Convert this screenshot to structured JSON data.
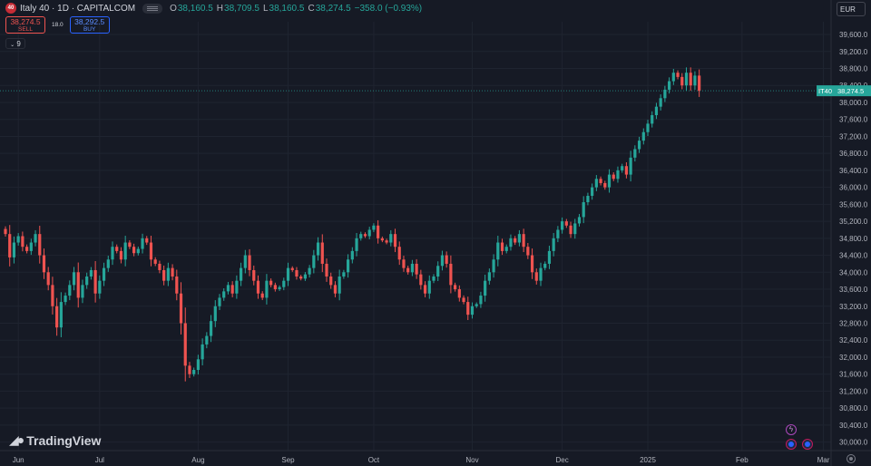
{
  "header": {
    "symbol_badge": "40",
    "title": "Italy 40 · 1D · CAPITALCOM",
    "ohlc": [
      {
        "key": "O",
        "value": "38,160.5"
      },
      {
        "key": "H",
        "value": "38,709.5"
      },
      {
        "key": "L",
        "value": "38,160.5"
      },
      {
        "key": "C",
        "value": "38,274.5"
      }
    ],
    "change": "−358.0 (−0.93%)"
  },
  "trade": {
    "sell_price": "38,274.5",
    "sell_label": "SELL",
    "spread": "18.0",
    "buy_price": "38,292.5",
    "buy_label": "BUY"
  },
  "indicator_toggle": "9",
  "currency": "EUR",
  "price_tag": {
    "ticker": "IT40",
    "price": "38,274.5"
  },
  "brand": "TradingView",
  "colors": {
    "up": "#26a69a",
    "down": "#ef5350",
    "background": "#161a25",
    "grid": "#1f2430",
    "text": "#b2b5be"
  },
  "icons": [
    "lightning-icon",
    "event-icon",
    "event-icon",
    "settings-icon"
  ],
  "chart_data": {
    "type": "candlestick",
    "timeframe": "1D",
    "y_axis_labels": [
      "30,000.0",
      "30,400.0",
      "30,800.0",
      "31,200.0",
      "31,600.0",
      "32,000.0",
      "32,400.0",
      "32,800.0",
      "33,200.0",
      "33,600.0",
      "34,000.0",
      "34,400.0",
      "34,800.0",
      "35,200.0",
      "35,600.0",
      "36,000.0",
      "36,400.0",
      "36,800.0",
      "37,200.0",
      "37,600.0",
      "38,000.0",
      "38,400.0",
      "38,800.0",
      "39,200.0",
      "39,600.0"
    ],
    "ylim": [
      29800,
      39900
    ],
    "x_axis_labels": [
      {
        "label": "Jun",
        "index": 3
      },
      {
        "label": "Jul",
        "index": 22
      },
      {
        "label": "Aug",
        "index": 45
      },
      {
        "label": "Sep",
        "index": 66
      },
      {
        "label": "Oct",
        "index": 86
      },
      {
        "label": "Nov",
        "index": 109
      },
      {
        "label": "Dec",
        "index": 130
      },
      {
        "label": "2025",
        "index": 150
      },
      {
        "label": "Feb",
        "index": 172
      },
      {
        "label": "Mar",
        "index": 191
      }
    ],
    "last_price": 38274.5,
    "closes": [
      34900,
      34350,
      34700,
      34850,
      34600,
      34500,
      34700,
      34900,
      34400,
      34000,
      33700,
      33200,
      32700,
      33300,
      33450,
      33700,
      34000,
      33400,
      33700,
      33900,
      34050,
      33500,
      33800,
      34100,
      34300,
      34600,
      34500,
      34300,
      34700,
      34600,
      34450,
      34550,
      34800,
      34700,
      34300,
      34200,
      34050,
      33800,
      34100,
      33900,
      33500,
      32800,
      31800,
      31600,
      31700,
      31950,
      32300,
      32500,
      32850,
      33200,
      33400,
      33550,
      33700,
      33500,
      33800,
      34100,
      34400,
      34050,
      33800,
      33500,
      33400,
      33800,
      33700,
      33600,
      33650,
      33800,
      34100,
      34050,
      33900,
      33850,
      33950,
      34100,
      34400,
      34700,
      34200,
      33900,
      33700,
      33500,
      33900,
      34000,
      34300,
      34500,
      34800,
      34900,
      34850,
      35000,
      35100,
      34800,
      34750,
      34700,
      34900,
      34600,
      34300,
      34100,
      34000,
      34200,
      33950,
      33700,
      33500,
      33800,
      33900,
      34150,
      34400,
      34200,
      33700,
      33600,
      33400,
      33300,
      33000,
      33200,
      33250,
      33450,
      33800,
      34000,
      34300,
      34700,
      34500,
      34600,
      34800,
      34700,
      34900,
      34600,
      34400,
      34000,
      33800,
      34100,
      34200,
      34500,
      34800,
      35000,
      35200,
      35100,
      34900,
      35150,
      35300,
      35650,
      35800,
      36000,
      36200,
      36100,
      36000,
      36300,
      36200,
      36400,
      36500,
      36300,
      36700,
      36900,
      37100,
      37300,
      37500,
      37700,
      37900,
      38100,
      38300,
      38500,
      38700,
      38600,
      38400,
      38700,
      38400,
      38632,
      38274.5
    ]
  }
}
